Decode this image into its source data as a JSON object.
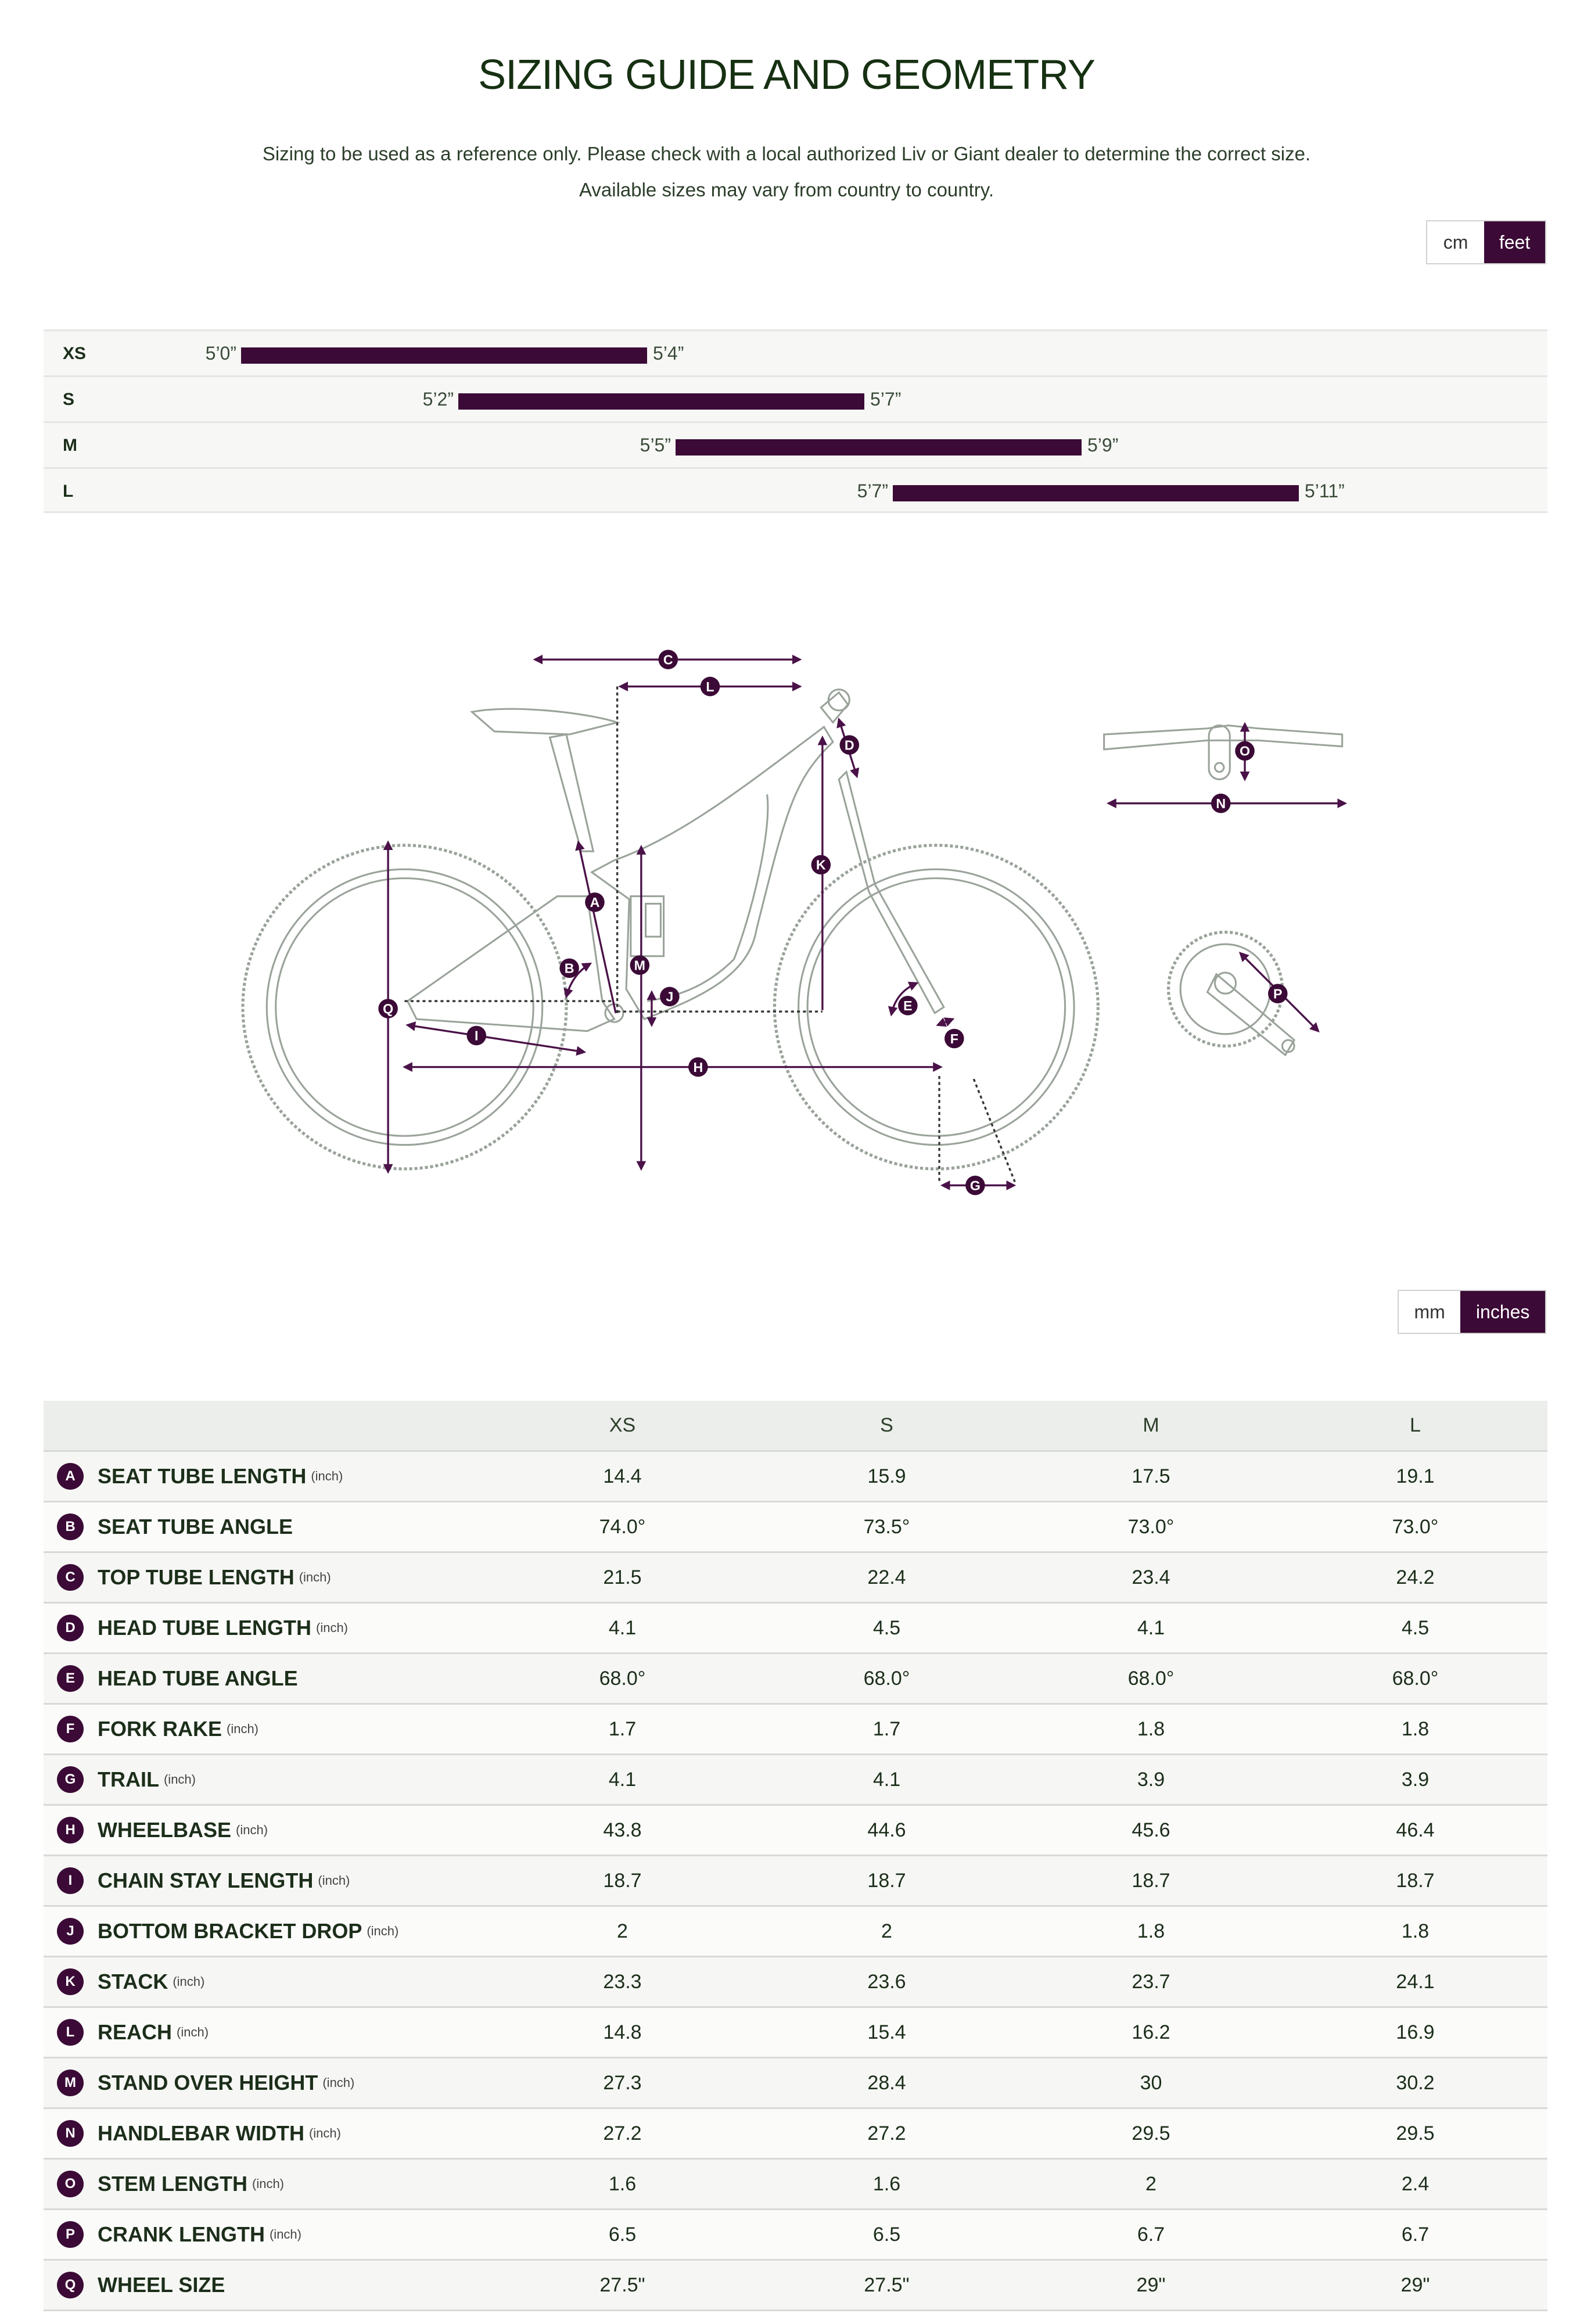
{
  "header": {
    "title": "SIZING GUIDE AND GEOMETRY",
    "subtitle_line1": "Sizing to be used as a reference only. Please check with a local authorized Liv or Giant dealer to determine the correct size.",
    "subtitle_line2": "Available sizes may vary from country to country."
  },
  "height_units": {
    "option1": "cm",
    "option2": "feet",
    "selected": "feet"
  },
  "sizing": [
    {
      "size": "XS",
      "min": "5’0”",
      "max": "5’4”"
    },
    {
      "size": "S",
      "min": "5’2”",
      "max": "5’7”"
    },
    {
      "size": "M",
      "min": "5’5”",
      "max": "5’9”"
    },
    {
      "size": "L",
      "min": "5’7”",
      "max": "5’11”"
    }
  ],
  "geometry_units": {
    "option1": "mm",
    "option2": "inches",
    "selected": "inches"
  },
  "geometry": {
    "columns": [
      "XS",
      "S",
      "M",
      "L"
    ],
    "rows": [
      {
        "letter": "A",
        "name": "SEAT TUBE LENGTH",
        "unit": "(inch)",
        "values": [
          "14.4",
          "15.9",
          "17.5",
          "19.1"
        ]
      },
      {
        "letter": "B",
        "name": "SEAT TUBE ANGLE",
        "unit": "",
        "values": [
          "74.0°",
          "73.5°",
          "73.0°",
          "73.0°"
        ]
      },
      {
        "letter": "C",
        "name": "TOP TUBE LENGTH",
        "unit": "(inch)",
        "values": [
          "21.5",
          "22.4",
          "23.4",
          "24.2"
        ]
      },
      {
        "letter": "D",
        "name": "HEAD TUBE LENGTH",
        "unit": "(inch)",
        "values": [
          "4.1",
          "4.5",
          "4.1",
          "4.5"
        ]
      },
      {
        "letter": "E",
        "name": "HEAD TUBE ANGLE",
        "unit": "",
        "values": [
          "68.0°",
          "68.0°",
          "68.0°",
          "68.0°"
        ]
      },
      {
        "letter": "F",
        "name": "FORK RAKE",
        "unit": "(inch)",
        "values": [
          "1.7",
          "1.7",
          "1.8",
          "1.8"
        ]
      },
      {
        "letter": "G",
        "name": "TRAIL",
        "unit": "(inch)",
        "values": [
          "4.1",
          "4.1",
          "3.9",
          "3.9"
        ]
      },
      {
        "letter": "H",
        "name": "WHEELBASE",
        "unit": "(inch)",
        "values": [
          "43.8",
          "44.6",
          "45.6",
          "46.4"
        ]
      },
      {
        "letter": "I",
        "name": "CHAIN STAY LENGTH",
        "unit": "(inch)",
        "values": [
          "18.7",
          "18.7",
          "18.7",
          "18.7"
        ]
      },
      {
        "letter": "J",
        "name": "BOTTOM BRACKET DROP",
        "unit": "(inch)",
        "values": [
          "2",
          "2",
          "1.8",
          "1.8"
        ]
      },
      {
        "letter": "K",
        "name": "STACK",
        "unit": "(inch)",
        "values": [
          "23.3",
          "23.6",
          "23.7",
          "24.1"
        ]
      },
      {
        "letter": "L",
        "name": "REACH",
        "unit": "(inch)",
        "values": [
          "14.8",
          "15.4",
          "16.2",
          "16.9"
        ]
      },
      {
        "letter": "M",
        "name": "STAND OVER HEIGHT",
        "unit": "(inch)",
        "values": [
          "27.3",
          "28.4",
          "30",
          "30.2"
        ]
      },
      {
        "letter": "N",
        "name": "HANDLEBAR WIDTH",
        "unit": "(inch)",
        "values": [
          "27.2",
          "27.2",
          "29.5",
          "29.5"
        ]
      },
      {
        "letter": "O",
        "name": "STEM LENGTH",
        "unit": "(inch)",
        "values": [
          "1.6",
          "1.6",
          "2",
          "2.4"
        ]
      },
      {
        "letter": "P",
        "name": "CRANK LENGTH",
        "unit": "(inch)",
        "values": [
          "6.5",
          "6.5",
          "6.7",
          "6.7"
        ]
      },
      {
        "letter": "Q",
        "name": "WHEEL SIZE",
        "unit": "",
        "values": [
          "27.5\"",
          "27.5\"",
          "29\"",
          "29\""
        ]
      }
    ]
  },
  "colors": {
    "accent": "#3b0a36",
    "title": "#163012",
    "line": "#9aa39a"
  }
}
